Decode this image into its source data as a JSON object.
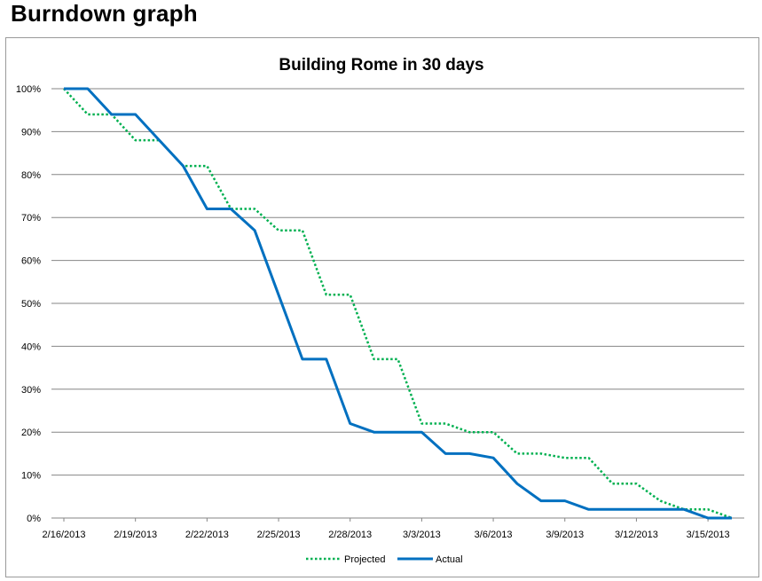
{
  "page": {
    "heading": "Burndown graph"
  },
  "chart_data": {
    "type": "line",
    "title": "Building Rome in 30 days",
    "xlabel": "",
    "ylabel": "",
    "ylim": [
      0,
      100
    ],
    "y_ticks": [
      "0%",
      "10%",
      "20%",
      "30%",
      "40%",
      "50%",
      "60%",
      "70%",
      "80%",
      "90%",
      "100%"
    ],
    "x_ticks": [
      "2/16/2013",
      "2/19/2013",
      "2/22/2013",
      "2/25/2013",
      "2/28/2013",
      "3/3/2013",
      "3/6/2013",
      "3/9/2013",
      "3/12/2013",
      "3/15/2013"
    ],
    "x": [
      "2/16/2013",
      "2/17/2013",
      "2/18/2013",
      "2/19/2013",
      "2/20/2013",
      "2/21/2013",
      "2/22/2013",
      "2/23/2013",
      "2/24/2013",
      "2/25/2013",
      "2/26/2013",
      "2/27/2013",
      "2/28/2013",
      "3/1/2013",
      "3/2/2013",
      "3/3/2013",
      "3/4/2013",
      "3/5/2013",
      "3/6/2013",
      "3/7/2013",
      "3/8/2013",
      "3/9/2013",
      "3/10/2013",
      "3/11/2013",
      "3/12/2013",
      "3/13/2013",
      "3/14/2013",
      "3/15/2013",
      "3/16/2013"
    ],
    "grid": true,
    "legend_position": "bottom",
    "series": [
      {
        "name": "Projected",
        "style": "dotted",
        "color": "#00b050",
        "values": [
          100,
          94,
          94,
          88,
          88,
          82,
          82,
          72,
          72,
          67,
          67,
          52,
          52,
          37,
          37,
          22,
          22,
          20,
          20,
          15,
          15,
          14,
          14,
          8,
          8,
          4,
          2,
          2,
          0
        ]
      },
      {
        "name": "Actual",
        "style": "solid",
        "color": "#0070c0",
        "values": [
          100,
          100,
          94,
          94,
          88,
          82,
          72,
          72,
          67,
          52,
          37,
          37,
          22,
          20,
          20,
          20,
          15,
          15,
          14,
          8,
          4,
          4,
          2,
          2,
          2,
          2,
          2,
          0,
          0
        ]
      }
    ]
  }
}
